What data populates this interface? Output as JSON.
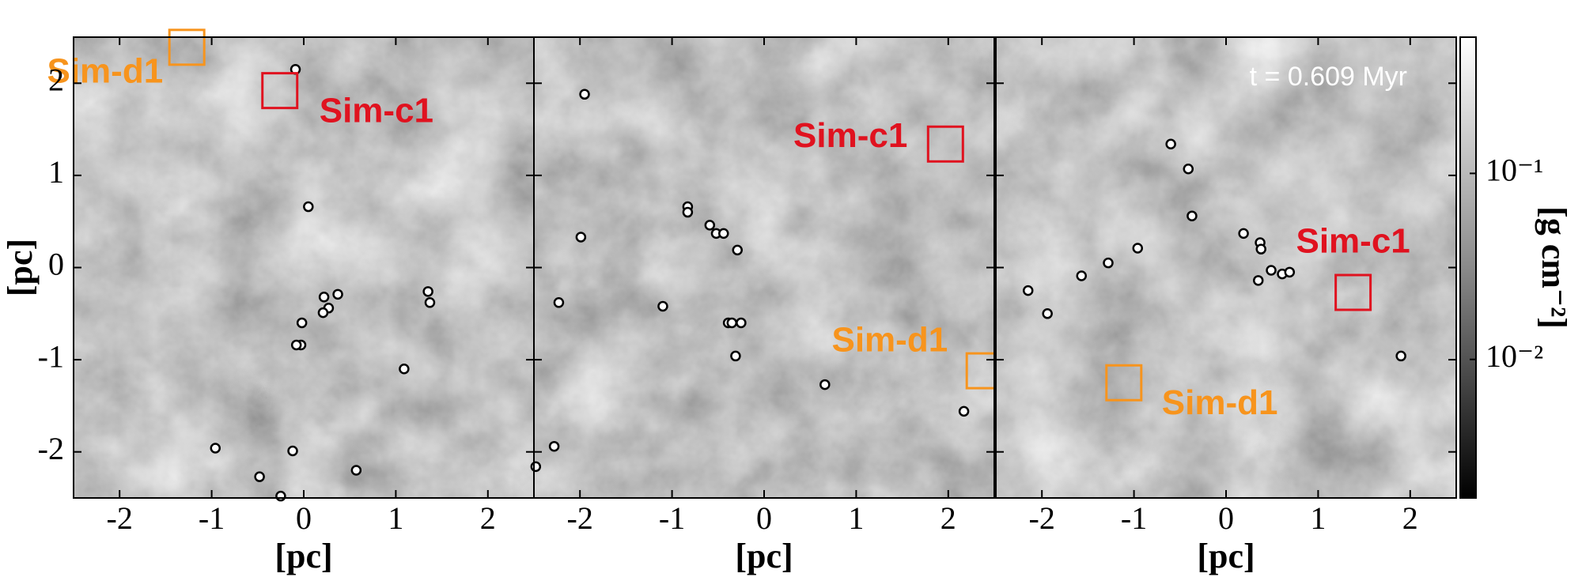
{
  "chart_data": [
    {
      "type": "scatter",
      "xlabel": "[pc]",
      "ylabel": "[pc]",
      "xlim": [
        -2.5,
        2.5
      ],
      "ylim": [
        -2.5,
        2.5
      ],
      "xticks": [
        -2,
        -1,
        0,
        1,
        2
      ],
      "yticks": [
        -2,
        -1,
        0,
        1,
        2
      ],
      "ytick_labels": true,
      "x": [
        -0.09,
        0.05,
        0.22,
        0.37,
        0.27,
        0.21,
        -0.02,
        -0.03,
        -0.08,
        1.35,
        1.37,
        1.09,
        -0.96,
        -0.12,
        -0.48,
        0.57,
        -0.25
      ],
      "y": [
        2.15,
        0.66,
        -0.32,
        -0.29,
        -0.44,
        -0.49,
        -0.6,
        -0.84,
        -0.84,
        -0.26,
        -0.38,
        -1.1,
        -1.96,
        -1.99,
        -2.27,
        -2.2,
        -2.48
      ],
      "annotations": [
        {
          "text": "Sim-d1",
          "x": -1.27,
          "y": 2.39,
          "color": "#f7941d"
        },
        {
          "text": "Sim-c1",
          "x": -0.26,
          "y": 1.92,
          "color": "#e0121f"
        }
      ]
    },
    {
      "type": "scatter",
      "xlabel": "[pc]",
      "xlim": [
        -2.5,
        2.5
      ],
      "ylim": [
        -2.5,
        2.5
      ],
      "xticks": [
        -2,
        -1,
        0,
        1,
        2
      ],
      "yticks": [
        -2,
        -1,
        0,
        1,
        2
      ],
      "ytick_labels": false,
      "x": [
        -1.95,
        -1.99,
        -2.23,
        -0.83,
        -0.83,
        -0.59,
        -0.52,
        -0.44,
        -0.29,
        -1.1,
        -0.39,
        -0.35,
        -0.25,
        -0.31,
        0.66,
        2.17,
        -2.28,
        -2.48
      ],
      "y": [
        1.88,
        0.33,
        -0.38,
        0.66,
        0.6,
        0.46,
        0.37,
        0.37,
        0.19,
        -0.42,
        -0.6,
        -0.6,
        -0.6,
        -0.96,
        -1.27,
        -1.56,
        -1.94,
        -2.16
      ],
      "annotations": [
        {
          "text": "Sim-c1",
          "x": 1.97,
          "y": 1.34,
          "color": "#e0121f"
        },
        {
          "text": "Sim-d1",
          "x": 2.39,
          "y": -1.12,
          "color": "#f7941d"
        }
      ]
    },
    {
      "type": "scatter",
      "xlabel": "[pc]",
      "xlim": [
        -2.5,
        2.5
      ],
      "ylim": [
        -2.5,
        2.5
      ],
      "xticks": [
        -2,
        -1,
        0,
        1,
        2
      ],
      "yticks": [
        -2,
        -1,
        0,
        1,
        2
      ],
      "ytick_labels": false,
      "time_label": "t = 0.609 Myr",
      "x": [
        -0.6,
        -0.41,
        -0.37,
        0.19,
        0.37,
        0.38,
        -0.96,
        -1.28,
        -1.57,
        -2.15,
        -1.94,
        0.35,
        0.49,
        0.61,
        0.69,
        1.9
      ],
      "y": [
        1.34,
        1.07,
        0.56,
        0.37,
        0.27,
        0.2,
        0.21,
        0.05,
        -0.09,
        -0.25,
        -0.5,
        -0.14,
        -0.03,
        -0.07,
        -0.05,
        -0.96
      ],
      "annotations": [
        {
          "text": "Sim-c1",
          "x": 1.38,
          "y": -0.27,
          "color": "#e0121f"
        },
        {
          "text": "Sim-d1",
          "x": -1.11,
          "y": -1.25,
          "color": "#f7941d"
        }
      ],
      "colorbar": {
        "label": "[g cm⁻²]",
        "clim": [
          0.0018,
          0.54
        ],
        "log": true,
        "ticks": [
          {
            "value": 0.1,
            "label": "10⁻¹"
          },
          {
            "value": 0.01,
            "label": "10⁻²"
          }
        ]
      }
    }
  ]
}
